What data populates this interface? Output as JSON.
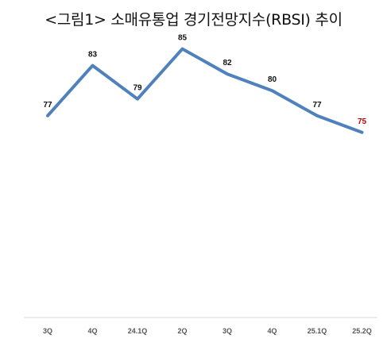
{
  "chart_data": {
    "type": "line",
    "title": "<그림1> 소매유통업 경기전망지수(RBSI) 추이",
    "categories": [
      "3Q",
      "4Q",
      "24.1Q",
      "2Q",
      "3Q",
      "4Q",
      "25.1Q",
      "25.2Q"
    ],
    "series": [
      {
        "values": [
          77,
          83,
          79,
          85,
          82,
          80,
          77,
          75
        ]
      }
    ],
    "ylim": [
      50,
      88
    ],
    "grid": false,
    "legend": "none",
    "line_color": "#4F81BD",
    "label_color": "#111111",
    "highlight_last_label_color": "#C00000",
    "axis_color": "#D9D9D9"
  }
}
